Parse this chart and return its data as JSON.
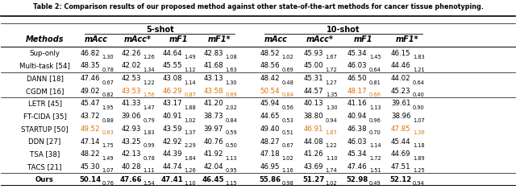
{
  "title": "Table 2: Comparison results of our proposed method against other state-of-the-art methods for cancer tissue phenotyping.",
  "rows": [
    {
      "method": "Sup-only",
      "values": [
        "46.82",
        "1.30",
        "42.26",
        "1.26",
        "44.64",
        "1.49",
        "42.83",
        "1.08",
        "48.52",
        "1.02",
        "45.93",
        "1.67",
        "45.34",
        "1.45",
        "46.15",
        "1.83"
      ],
      "bold": [
        false,
        false,
        false,
        false,
        false,
        false,
        false,
        false
      ],
      "orange": [
        false,
        false,
        false,
        false,
        false,
        false,
        false,
        false
      ],
      "group": 0
    },
    {
      "method": "Multi-task [54]",
      "values": [
        "48.35",
        "0.78",
        "42.02",
        "1.34",
        "45.55",
        "1.12",
        "41.68",
        "1.63",
        "48.56",
        "0.69",
        "45.00",
        "1.72",
        "46.03",
        "0.64",
        "44.46",
        "1.21"
      ],
      "bold": [
        false,
        false,
        false,
        false,
        false,
        false,
        false,
        false
      ],
      "orange": [
        false,
        false,
        false,
        false,
        false,
        false,
        false,
        false
      ],
      "group": 0
    },
    {
      "method": "DANN [18]",
      "values": [
        "47.46",
        "0.67",
        "42.53",
        "1.22",
        "43.08",
        "1.14",
        "43.13",
        "1.30",
        "48.42",
        "0.48",
        "45.31",
        "1.27",
        "46.50",
        "0.81",
        "44.02",
        "0.64"
      ],
      "bold": [
        false,
        false,
        false,
        false,
        false,
        false,
        false,
        false
      ],
      "orange": [
        false,
        false,
        false,
        false,
        false,
        false,
        false,
        false
      ],
      "group": 1
    },
    {
      "method": "CGDM [16]",
      "values": [
        "49.02",
        "0.82",
        "43.53",
        "1.56",
        "46.29",
        "0.87",
        "43.58",
        "0.69",
        "50.54",
        "0.84",
        "44.57",
        "1.35",
        "48.17",
        "0.66",
        "45.23",
        "0.40"
      ],
      "bold": [
        false,
        false,
        false,
        false,
        false,
        false,
        false,
        false
      ],
      "orange": [
        false,
        true,
        true,
        true,
        true,
        false,
        true,
        false
      ],
      "group": 1
    },
    {
      "method": "LETR [45]",
      "values": [
        "45.47",
        "1.95",
        "41.33",
        "1.47",
        "43.17",
        "1.88",
        "41.20",
        "2.02",
        "45.94",
        "0.56",
        "40.13",
        "1.30",
        "41.16",
        "1.13",
        "39.61",
        "0.90"
      ],
      "bold": [
        false,
        false,
        false,
        false,
        false,
        false,
        false,
        false
      ],
      "orange": [
        false,
        false,
        false,
        false,
        false,
        false,
        false,
        false
      ],
      "group": 2
    },
    {
      "method": "FT-CIDA [35]",
      "values": [
        "43.72",
        "0.88",
        "39.06",
        "0.79",
        "40.91",
        "1.02",
        "38.73",
        "0.84",
        "44.65",
        "0.53",
        "38.80",
        "0.94",
        "40.94",
        "0.96",
        "38.96",
        "1.07"
      ],
      "bold": [
        false,
        false,
        false,
        false,
        false,
        false,
        false,
        false
      ],
      "orange": [
        false,
        false,
        false,
        false,
        false,
        false,
        false,
        false
      ],
      "group": 2
    },
    {
      "method": "STARTUP [50]",
      "values": [
        "49.52",
        "0.63",
        "42.93",
        "1.83",
        "43.59",
        "1.37",
        "39.97",
        "0.59",
        "49.40",
        "0.51",
        "46.91",
        "1.87",
        "46.38",
        "0.70",
        "47.85",
        "1.36"
      ],
      "bold": [
        false,
        false,
        false,
        false,
        false,
        false,
        false,
        false
      ],
      "orange": [
        true,
        false,
        false,
        false,
        false,
        true,
        false,
        true
      ],
      "group": 2
    },
    {
      "method": "DDN [27]",
      "values": [
        "47.14",
        "1.75",
        "43.25",
        "0.99",
        "42.92",
        "2.29",
        "40.76",
        "0.50",
        "48.27",
        "0.67",
        "44.08",
        "1.22",
        "46.03",
        "1.14",
        "45.44",
        "1.18"
      ],
      "bold": [
        false,
        false,
        false,
        false,
        false,
        false,
        false,
        false
      ],
      "orange": [
        false,
        false,
        false,
        false,
        false,
        false,
        false,
        false
      ],
      "group": 2
    },
    {
      "method": "TSA [38]",
      "values": [
        "48.22",
        "1.49",
        "42.13",
        "0.78",
        "44.39",
        "1.84",
        "41.92",
        "1.13",
        "47.18",
        "1.02",
        "41.26",
        "1.10",
        "45.34",
        "1.72",
        "44.69",
        "1.89"
      ],
      "bold": [
        false,
        false,
        false,
        false,
        false,
        false,
        false,
        false
      ],
      "orange": [
        false,
        false,
        false,
        false,
        false,
        false,
        false,
        false
      ],
      "group": 2
    },
    {
      "method": "TACS [21]",
      "values": [
        "45.30",
        "1.07",
        "40.28",
        "1.11",
        "44.74",
        "1.26",
        "42.04",
        "0.95",
        "46.95",
        "1.16",
        "43.69",
        "1.74",
        "47.46",
        "1.51",
        "47.51",
        "1.25"
      ],
      "bold": [
        false,
        false,
        false,
        false,
        false,
        false,
        false,
        false
      ],
      "orange": [
        false,
        false,
        false,
        false,
        false,
        false,
        false,
        false
      ],
      "group": 2
    },
    {
      "method": "Ours",
      "values": [
        "50.14",
        "0.76",
        "47.66",
        "1.54",
        "47.41",
        "1.10",
        "46.45",
        "1.15",
        "55.86",
        "0.98",
        "51.27",
        "1.02",
        "52.98",
        "0.49",
        "52.12",
        "0.94"
      ],
      "bold": [
        true,
        true,
        true,
        true,
        true,
        true,
        true,
        true
      ],
      "orange": [
        false,
        false,
        false,
        false,
        false,
        false,
        false,
        false
      ],
      "group": 3
    }
  ],
  "col_headers_l2": [
    "Methods",
    "mAcc",
    "mAcc*",
    "mF1",
    "mF1*",
    "mAcc",
    "mAcc*",
    "mF1",
    "mF1*"
  ],
  "orange_color": "#E07000",
  "title_fontsize": 5.8,
  "header_fontsize": 7.0,
  "cell_fontsize": 6.2,
  "sub_fontsize": 4.8
}
